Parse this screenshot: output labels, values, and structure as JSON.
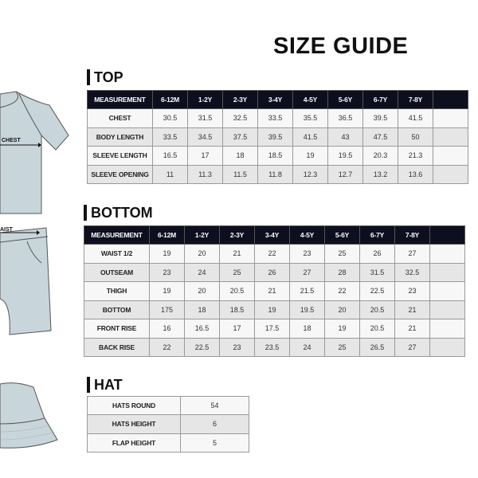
{
  "title": "SIZE GUIDE",
  "sections": {
    "top": "TOP",
    "bottom": "BOTTOM",
    "hat": "HAT"
  },
  "illustration_labels": {
    "chest": "CHEST",
    "waist": "AIST"
  },
  "colors": {
    "header_bg": "#0d0f1e",
    "garment": "#c8d5db"
  },
  "top_table": {
    "headers": [
      "MEASUREMENT",
      "6-12M",
      "1-2Y",
      "2-3Y",
      "3-4Y",
      "4-5Y",
      "5-6Y",
      "6-7Y",
      "7-8Y",
      ""
    ],
    "rows": [
      [
        "CHEST",
        "30.5",
        "31.5",
        "32.5",
        "33.5",
        "35.5",
        "36.5",
        "39.5",
        "41.5",
        ""
      ],
      [
        "BODY LENGTH",
        "33.5",
        "34.5",
        "37.5",
        "39.5",
        "41.5",
        "43",
        "47.5",
        "50",
        ""
      ],
      [
        "SLEEVE LENGTH",
        "16.5",
        "17",
        "18",
        "18.5",
        "19",
        "19.5",
        "20.3",
        "21.3",
        ""
      ],
      [
        "SLEEVE OPENING",
        "11",
        "11.3",
        "11.5",
        "11.8",
        "12.3",
        "12.7",
        "13.2",
        "13.6",
        ""
      ]
    ]
  },
  "bottom_table": {
    "headers": [
      "MEASUREMENT",
      "6-12M",
      "1-2Y",
      "2-3Y",
      "3-4Y",
      "4-5Y",
      "5-6Y",
      "6-7Y",
      "7-8Y",
      ""
    ],
    "rows": [
      [
        "WAIST 1/2",
        "19",
        "20",
        "21",
        "22",
        "23",
        "25",
        "26",
        "27",
        ""
      ],
      [
        "OUTSEAM",
        "23",
        "24",
        "25",
        "26",
        "27",
        "28",
        "31.5",
        "32.5",
        ""
      ],
      [
        "THIGH",
        "19",
        "20",
        "20.5",
        "21",
        "21.5",
        "22",
        "22.5",
        "23",
        ""
      ],
      [
        "BOTTOM",
        "175",
        "18",
        "18.5",
        "19",
        "19.5",
        "20",
        "20.5",
        "21",
        ""
      ],
      [
        "FRONT RISE",
        "16",
        "16.5",
        "17",
        "17.5",
        "18",
        "19",
        "20.5",
        "21",
        ""
      ],
      [
        "BACK RISE",
        "22",
        "22.5",
        "23",
        "23.5",
        "24",
        "25",
        "26.5",
        "27",
        ""
      ]
    ]
  },
  "hat_table": {
    "rows": [
      [
        "HATS ROUND",
        "54"
      ],
      [
        "HATS HEIGHT",
        "6"
      ],
      [
        "FLAP HEIGHT",
        "5"
      ]
    ]
  }
}
